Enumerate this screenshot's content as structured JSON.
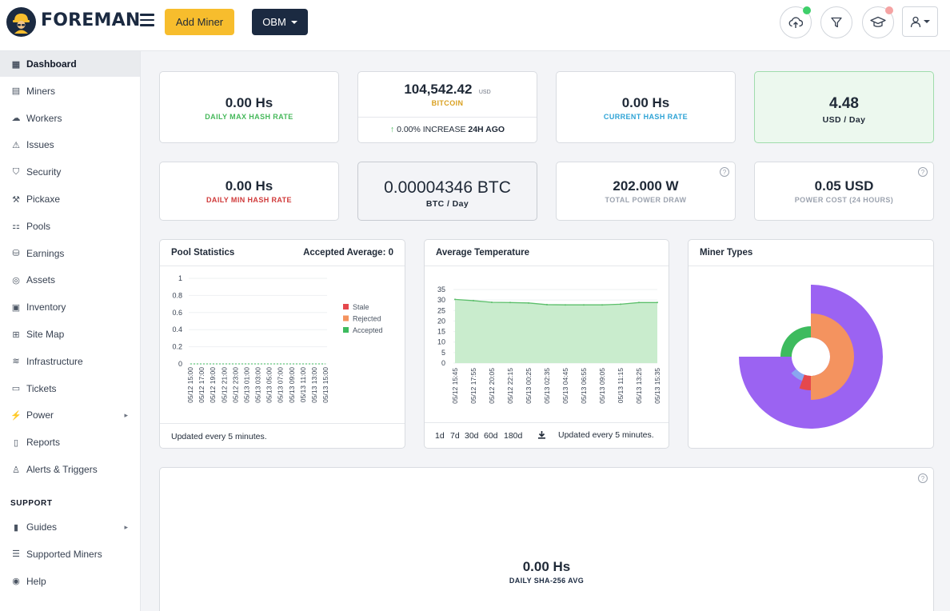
{
  "app": {
    "logo_text": "FOREMAN"
  },
  "header": {
    "add_miner_label": "Add Miner",
    "org_label": "OBM",
    "colors": {
      "upload_dot": "#3ecf6a",
      "learn_dot": "#f5a3a3"
    }
  },
  "sidebar": {
    "items": [
      {
        "label": "Dashboard",
        "icon": "dashboard-icon",
        "active": true
      },
      {
        "label": "Miners",
        "icon": "miners-icon"
      },
      {
        "label": "Workers",
        "icon": "workers-icon"
      },
      {
        "label": "Issues",
        "icon": "warning-icon"
      },
      {
        "label": "Security",
        "icon": "shield-icon"
      },
      {
        "label": "Pickaxe",
        "icon": "pickaxe-icon"
      },
      {
        "label": "Pools",
        "icon": "pools-icon"
      },
      {
        "label": "Earnings",
        "icon": "coins-icon"
      },
      {
        "label": "Assets",
        "icon": "assets-icon"
      },
      {
        "label": "Inventory",
        "icon": "inventory-icon"
      },
      {
        "label": "Site Map",
        "icon": "sitemap-icon"
      },
      {
        "label": "Infrastructure",
        "icon": "layers-icon"
      },
      {
        "label": "Tickets",
        "icon": "ticket-icon"
      },
      {
        "label": "Power",
        "icon": "bolt-icon",
        "submenu": true
      },
      {
        "label": "Reports",
        "icon": "report-icon"
      },
      {
        "label": "Alerts & Triggers",
        "icon": "alert-icon"
      }
    ],
    "support_label": "SUPPORT",
    "support_items": [
      {
        "label": "Guides",
        "icon": "book-icon",
        "submenu": true
      },
      {
        "label": "Supported Miners",
        "icon": "list-icon"
      },
      {
        "label": "Help",
        "icon": "help-icon"
      }
    ]
  },
  "stats": {
    "daily_max": {
      "value": "0.00 Hs",
      "label": "DAILY MAX HASH RATE",
      "color": "#45b85a"
    },
    "bitcoin": {
      "value": "104,542.42",
      "unit": "USD",
      "label": "BITCOIN",
      "label_color": "#d9a020",
      "change_arrow": "↑",
      "change": "0.00% INCREASE",
      "change_period": "24H AGO"
    },
    "current": {
      "value": "0.00 Hs",
      "label": "CURRENT HASH RATE",
      "color": "#2ea3d6"
    },
    "usd_day": {
      "value": "4.48",
      "label": "USD / Day"
    },
    "daily_min": {
      "value": "0.00 Hs",
      "label": "DAILY MIN HASH RATE",
      "color": "#d03a3a"
    },
    "btc_day": {
      "value": "0.00004346 BTC",
      "label": "BTC / Day"
    },
    "power": {
      "value": "202.000 W",
      "label": "TOTAL POWER DRAW",
      "help": "?"
    },
    "cost": {
      "value": "0.05 USD",
      "label": "POWER COST (24 HOURS)",
      "help": "?"
    }
  },
  "pool_stats": {
    "title": "Pool Statistics",
    "accepted_average": "Accepted Average: 0",
    "footer": "Updated every 5 minutes."
  },
  "avg_temp": {
    "title": "Average Temperature",
    "ranges": [
      "1d",
      "7d",
      "30d",
      "60d",
      "180d"
    ],
    "download_icon": "download-icon",
    "footer": "Updated every 5 minutes."
  },
  "miner_types": {
    "title": "Miner Types"
  },
  "sha_avg": {
    "value": "0.00 Hs",
    "label": "DAILY SHA-256 AVG",
    "help": "?"
  },
  "chart_data": [
    {
      "type": "line",
      "title": "Pool Statistics",
      "x": [
        "05/12 15:00",
        "05/12 17:00",
        "05/12 19:00",
        "05/12 21:00",
        "05/12 23:00",
        "05/13 01:00",
        "05/13 03:00",
        "05/13 05:00",
        "05/13 07:00",
        "05/13 09:00",
        "05/13 11:00",
        "05/13 13:00",
        "05/13 15:00"
      ],
      "yticks": [
        "1",
        "0.8",
        "0.6",
        "0.4",
        "0.2",
        "0"
      ],
      "ylim": [
        0,
        1
      ],
      "series": [
        {
          "name": "Stale",
          "color": "#e5484d",
          "values": [
            0,
            0,
            0,
            0,
            0,
            0,
            0,
            0,
            0,
            0,
            0,
            0,
            0
          ]
        },
        {
          "name": "Rejected",
          "color": "#f4935f",
          "values": [
            0,
            0,
            0,
            0,
            0,
            0,
            0,
            0,
            0,
            0,
            0,
            0,
            0
          ]
        },
        {
          "name": "Accepted",
          "color": "#3dbb5e",
          "values": [
            0,
            0,
            0,
            0,
            0,
            0,
            0,
            0,
            0,
            0,
            0,
            0,
            0
          ]
        }
      ],
      "legend": "right",
      "grid": true
    },
    {
      "type": "area",
      "title": "Average Temperature",
      "x": [
        "05/12 15:45",
        "05/12 17:55",
        "05/12 20:05",
        "05/12 22:15",
        "05/13 00:25",
        "05/13 02:35",
        "05/13 04:45",
        "05/13 06:55",
        "05/13 09:05",
        "05/13 11:15",
        "05/13 13:25",
        "05/13 15:35"
      ],
      "yticks": [
        "35",
        "30",
        "25",
        "20",
        "15",
        "10",
        "5",
        "0"
      ],
      "ylim": [
        0,
        35
      ],
      "series": [
        {
          "color": "#5cbf6b",
          "fill": "#c9eccd",
          "values": [
            30.3,
            29.7,
            28.9,
            28.8,
            28.6,
            27.8,
            27.7,
            27.7,
            27.7,
            28.0,
            28.8,
            28.8
          ]
        }
      ],
      "grid": true
    },
    {
      "type": "pie",
      "title": "Miner Types",
      "slices": [
        {
          "color": "#9b63f2",
          "start": -90,
          "end": 180
        },
        {
          "color": "#3dbb5e",
          "start": 180,
          "end": 270
        },
        {
          "color": "#f4935f",
          "start": 270,
          "end": 450
        },
        {
          "color": "#e5484d",
          "start": 450,
          "end": 470
        },
        {
          "color": "#8aa6f0",
          "start": 470,
          "end": 500
        }
      ]
    }
  ]
}
